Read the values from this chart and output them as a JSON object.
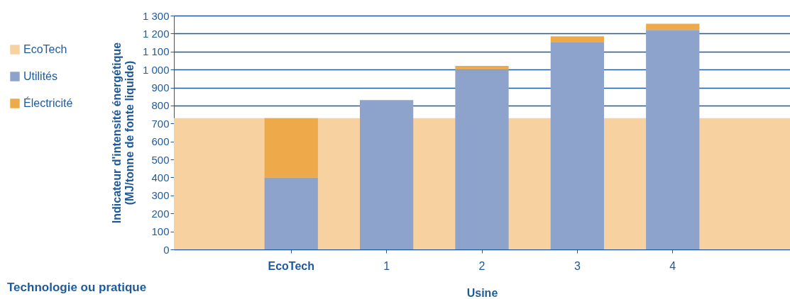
{
  "chart_data": {
    "type": "bar",
    "stacked": true,
    "categories": [
      "EcoTech",
      "1",
      "2",
      "3",
      "4"
    ],
    "series": [
      {
        "name": "Utilités",
        "color": "#8ea3cb",
        "values": [
          400,
          830,
          1000,
          1150,
          1220
        ]
      },
      {
        "name": "Électricité",
        "color": "#eeaa4a",
        "values": [
          330,
          0,
          20,
          35,
          35
        ]
      }
    ],
    "bands": [
      {
        "axis": "y",
        "from": 0,
        "to": 730,
        "label": "EcoTech",
        "color": "#f7d19f"
      }
    ],
    "xlabel": "Usine",
    "ylabel": "Indicateur d'intensité énergétique\n(MJ/tonne de fonte liquide)",
    "ylim": [
      0,
      1300
    ],
    "yticks": [
      0,
      100,
      200,
      300,
      400,
      500,
      600,
      700,
      800,
      900,
      {
        "value": 1000,
        "label": "1 000"
      },
      {
        "value": 1100,
        "label": "1 100"
      },
      {
        "value": 1200,
        "label": "1 200"
      },
      {
        "value": 1300,
        "label": "1 300"
      }
    ],
    "grid": "y",
    "legend": "left",
    "annotations": [
      "Technologie ou pratique"
    ]
  }
}
